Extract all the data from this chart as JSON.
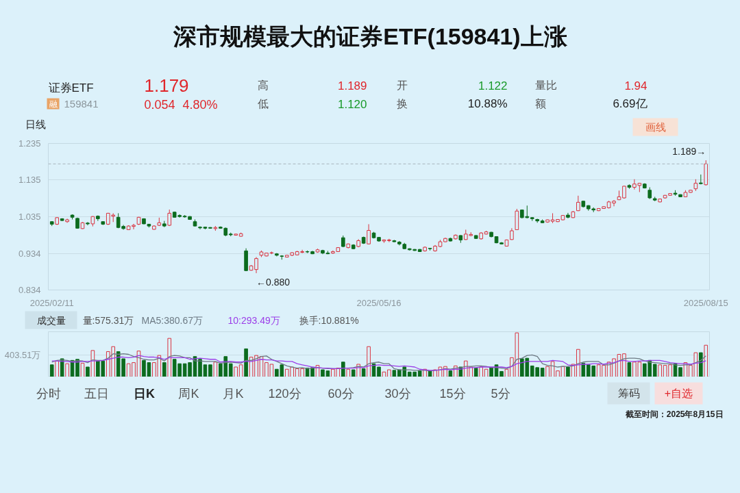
{
  "chart_data": [
    {
      "type": "candlestick",
      "title": "深市规模最大的证券ETF(159841)上涨",
      "categories": [
        "2025/02/11",
        null,
        null,
        null,
        null,
        null,
        null,
        null,
        null,
        null,
        null,
        null,
        null,
        null,
        null,
        null,
        null,
        null,
        null,
        null,
        null,
        null,
        null,
        null,
        null,
        null,
        null,
        null,
        null,
        null,
        null,
        null,
        null,
        null,
        null,
        null,
        null,
        null,
        null,
        null,
        null,
        null,
        null,
        null,
        null,
        null,
        null,
        null,
        null,
        null,
        null,
        null,
        null,
        null,
        null,
        null,
        null,
        null,
        null,
        null,
        null,
        null,
        null,
        null,
        "2025/05/16",
        null,
        null,
        null,
        null,
        null,
        null,
        null,
        null,
        null,
        null,
        null,
        null,
        null,
        null,
        null,
        null,
        null,
        null,
        null,
        null,
        null,
        null,
        null,
        null,
        null,
        null,
        null,
        null,
        null,
        null,
        null,
        null,
        null,
        null,
        null,
        null,
        null,
        null,
        null,
        null,
        null,
        null,
        null,
        null,
        null,
        null,
        null,
        null,
        null,
        null,
        null,
        null,
        null,
        null,
        null,
        null,
        null,
        null,
        null,
        null,
        null,
        null,
        null,
        "2025/08/15"
      ],
      "ohlc": [
        [
          1.021,
          1.022,
          1.009,
          1.014
        ],
        [
          1.014,
          1.033,
          1.012,
          1.032
        ],
        [
          1.029,
          1.03,
          1.023,
          1.024
        ],
        [
          1.021,
          1.029,
          1.018,
          1.026
        ],
        [
          1.039,
          1.041,
          1.027,
          1.033
        ],
        [
          1.03,
          1.032,
          1.002,
          1.003
        ],
        [
          1.002,
          1.02,
          1.001,
          1.018
        ],
        [
          1.017,
          1.02,
          1.011,
          1.015
        ],
        [
          1.015,
          1.036,
          1.008,
          1.035
        ],
        [
          1.036,
          1.038,
          1.023,
          1.029
        ],
        [
          1.021,
          1.022,
          1.012,
          1.014
        ],
        [
          1.014,
          1.045,
          1.012,
          1.044
        ],
        [
          1.036,
          1.044,
          1.02,
          1.039
        ],
        [
          1.033,
          1.044,
          1.003,
          1.005
        ],
        [
          1.008,
          1.012,
          0.999,
          1.002
        ],
        [
          0.999,
          1.011,
          0.998,
          1.009
        ],
        [
          1.008,
          1.015,
          1.0,
          1.011
        ],
        [
          1.014,
          1.034,
          1.012,
          1.033
        ],
        [
          1.029,
          1.03,
          1.014,
          1.015
        ],
        [
          1.014,
          1.015,
          1.005,
          1.009
        ],
        [
          1.0,
          1.011,
          0.999,
          1.009
        ],
        [
          1.011,
          1.032,
          1.009,
          1.018
        ],
        [
          1.015,
          1.023,
          1.006,
          1.009
        ],
        [
          1.011,
          1.054,
          1.009,
          1.044
        ],
        [
          1.047,
          1.048,
          1.032,
          1.033
        ],
        [
          1.038,
          1.041,
          1.032,
          1.035
        ],
        [
          1.036,
          1.039,
          1.032,
          1.034
        ],
        [
          1.035,
          1.036,
          1.026,
          1.027
        ],
        [
          1.021,
          1.027,
          1.008,
          1.009
        ],
        [
          1.006,
          1.008,
          1.0,
          1.004
        ],
        [
          1.006,
          1.007,
          1.0,
          1.003
        ],
        [
          1.005,
          1.006,
          1.002,
          1.003
        ],
        [
          1.002,
          1.009,
          0.996,
          1.005
        ],
        [
          1.006,
          1.008,
          1.002,
          1.003
        ],
        [
          1.003,
          1.005,
          0.981,
          0.984
        ],
        [
          0.987,
          0.991,
          0.981,
          0.985
        ],
        [
          0.984,
          0.988,
          0.983,
          0.987
        ],
        [
          0.981,
          0.991,
          0.98,
          0.988
        ],
        [
          0.941,
          0.948,
          0.886,
          0.887
        ],
        [
          0.888,
          0.902,
          0.887,
          0.9
        ],
        [
          0.89,
          0.924,
          0.88,
          0.92
        ],
        [
          0.929,
          0.942,
          0.924,
          0.938
        ],
        [
          0.927,
          0.936,
          0.926,
          0.935
        ],
        [
          0.935,
          0.939,
          0.932,
          0.936
        ],
        [
          0.933,
          0.935,
          0.926,
          0.929
        ],
        [
          0.927,
          0.929,
          0.917,
          0.926
        ],
        [
          0.924,
          0.93,
          0.923,
          0.929
        ],
        [
          0.929,
          0.937,
          0.927,
          0.936
        ],
        [
          0.93,
          0.941,
          0.929,
          0.939
        ],
        [
          0.937,
          0.944,
          0.935,
          0.939
        ],
        [
          0.939,
          0.942,
          0.935,
          0.938
        ],
        [
          0.939,
          0.941,
          0.932,
          0.933
        ],
        [
          0.938,
          0.947,
          0.936,
          0.944
        ],
        [
          0.942,
          0.944,
          0.932,
          0.935
        ],
        [
          0.935,
          0.941,
          0.932,
          0.933
        ],
        [
          0.935,
          0.942,
          0.933,
          0.939
        ],
        [
          0.939,
          0.951,
          0.938,
          0.95
        ],
        [
          0.977,
          0.983,
          0.951,
          0.953
        ],
        [
          0.95,
          0.961,
          0.948,
          0.96
        ],
        [
          0.957,
          0.959,
          0.946,
          0.947
        ],
        [
          0.953,
          0.973,
          0.951,
          0.969
        ],
        [
          0.978,
          0.98,
          0.96,
          0.962
        ],
        [
          0.96,
          1.014,
          0.959,
          0.997
        ],
        [
          0.99,
          0.993,
          0.975,
          0.977
        ],
        [
          0.978,
          0.979,
          0.966,
          0.968
        ],
        [
          0.968,
          0.972,
          0.963,
          0.971
        ],
        [
          0.969,
          0.974,
          0.965,
          0.971
        ],
        [
          0.969,
          0.971,
          0.965,
          0.966
        ],
        [
          0.965,
          0.968,
          0.956,
          0.96
        ],
        [
          0.959,
          0.963,
          0.946,
          0.947
        ],
        [
          0.947,
          0.948,
          0.942,
          0.944
        ],
        [
          0.945,
          0.946,
          0.941,
          0.942
        ],
        [
          0.945,
          0.946,
          0.938,
          0.939
        ],
        [
          0.941,
          0.953,
          0.939,
          0.951
        ],
        [
          0.948,
          0.949,
          0.942,
          0.947
        ],
        [
          0.941,
          0.957,
          0.939,
          0.954
        ],
        [
          0.953,
          0.971,
          0.951,
          0.966
        ],
        [
          0.966,
          0.977,
          0.965,
          0.975
        ],
        [
          0.975,
          0.977,
          0.967,
          0.968
        ],
        [
          0.974,
          0.986,
          0.972,
          0.984
        ],
        [
          0.983,
          0.984,
          0.963,
          0.971
        ],
        [
          0.972,
          0.999,
          0.971,
          0.987
        ],
        [
          0.983,
          0.992,
          0.981,
          0.986
        ],
        [
          0.983,
          0.984,
          0.974,
          0.975
        ],
        [
          0.974,
          0.992,
          0.972,
          0.99
        ],
        [
          0.987,
          0.996,
          0.986,
          0.993
        ],
        [
          0.992,
          0.993,
          0.978,
          0.98
        ],
        [
          0.98,
          0.981,
          0.962,
          0.963
        ],
        [
          0.963,
          0.965,
          0.959,
          0.96
        ],
        [
          0.954,
          0.972,
          0.953,
          0.971
        ],
        [
          0.972,
          1.003,
          0.971,
          0.996
        ],
        [
          0.999,
          1.056,
          0.998,
          1.05
        ],
        [
          1.053,
          1.054,
          1.03,
          1.032
        ],
        [
          1.035,
          1.065,
          1.03,
          1.032
        ],
        [
          1.032,
          1.033,
          1.023,
          1.029
        ],
        [
          1.027,
          1.029,
          1.018,
          1.023
        ],
        [
          1.023,
          1.027,
          1.017,
          1.018
        ],
        [
          1.02,
          1.027,
          1.018,
          1.026
        ],
        [
          1.022,
          1.044,
          1.017,
          1.026
        ],
        [
          1.021,
          1.028,
          1.02,
          1.027
        ],
        [
          1.026,
          1.039,
          1.025,
          1.038
        ],
        [
          1.039,
          1.045,
          1.03,
          1.033
        ],
        [
          1.032,
          1.05,
          1.031,
          1.048
        ],
        [
          1.051,
          1.092,
          1.05,
          1.074
        ],
        [
          1.077,
          1.078,
          1.06,
          1.062
        ],
        [
          1.065,
          1.066,
          1.051,
          1.056
        ],
        [
          1.056,
          1.06,
          1.047,
          1.053
        ],
        [
          1.051,
          1.058,
          1.05,
          1.057
        ],
        [
          1.057,
          1.063,
          1.056,
          1.062
        ],
        [
          1.059,
          1.078,
          1.057,
          1.075
        ],
        [
          1.072,
          1.08,
          1.063,
          1.077
        ],
        [
          1.081,
          1.106,
          1.08,
          1.089
        ],
        [
          1.086,
          1.119,
          1.084,
          1.118
        ],
        [
          1.12,
          1.123,
          1.111,
          1.115
        ],
        [
          1.115,
          1.137,
          1.109,
          1.124
        ],
        [
          1.12,
          1.127,
          1.102,
          1.126
        ],
        [
          1.124,
          1.126,
          1.112,
          1.113
        ],
        [
          1.107,
          1.115,
          1.083,
          1.086
        ],
        [
          1.084,
          1.089,
          1.077,
          1.08
        ],
        [
          1.075,
          1.084,
          1.074,
          1.083
        ],
        [
          1.086,
          1.094,
          1.084,
          1.093
        ],
        [
          1.093,
          1.099,
          1.092,
          1.098
        ],
        [
          1.099,
          1.107,
          1.092,
          1.096
        ],
        [
          1.095,
          1.096,
          1.088,
          1.089
        ],
        [
          1.089,
          1.107,
          1.088,
          1.101
        ],
        [
          1.101,
          1.108,
          1.1,
          1.107
        ],
        [
          1.111,
          1.137,
          1.105,
          1.126
        ],
        [
          1.127,
          1.15,
          1.123,
          1.125
        ],
        [
          1.122,
          1.189,
          1.12,
          1.179
        ]
      ],
      "colors": [
        "#0c6b1e",
        "#d9333f",
        "#0c6b1e",
        "#d9333f",
        "#0c6b1e",
        "#0c6b1e",
        "#d9333f",
        "#0c6b1e",
        "#d9333f",
        "#0c6b1e",
        "#0c6b1e",
        "#d9333f",
        "#d9333f",
        "#0c6b1e",
        "#0c6b1e",
        "#d9333f",
        "#d9333f",
        "#d9333f",
        "#0c6b1e",
        "#0c6b1e",
        "#d9333f",
        "#d9333f",
        "#0c6b1e",
        "#d9333f",
        "#0c6b1e",
        "#0c6b1e",
        "#0c6b1e",
        "#0c6b1e",
        "#0c6b1e",
        "#0c6b1e",
        "#0c6b1e",
        "#0c6b1e",
        "#d9333f",
        "#0c6b1e",
        "#0c6b1e",
        "#0c6b1e",
        "#d9333f",
        "#d9333f",
        "#0c6b1e",
        "#d9333f",
        "#d9333f",
        "#d9333f",
        "#d9333f",
        "#d9333f",
        "#0c6b1e",
        "#0c6b1e",
        "#d9333f",
        "#d9333f",
        "#d9333f",
        "#d9333f",
        "#0c6b1e",
        "#0c6b1e",
        "#d9333f",
        "#0c6b1e",
        "#0c6b1e",
        "#d9333f",
        "#d9333f",
        "#0c6b1e",
        "#d9333f",
        "#0c6b1e",
        "#d9333f",
        "#0c6b1e",
        "#d9333f",
        "#0c6b1e",
        "#0c6b1e",
        "#d9333f",
        "#d9333f",
        "#0c6b1e",
        "#0c6b1e",
        "#0c6b1e",
        "#0c6b1e",
        "#0c6b1e",
        "#0c6b1e",
        "#d9333f",
        "#0c6b1e",
        "#d9333f",
        "#d9333f",
        "#d9333f",
        "#0c6b1e",
        "#d9333f",
        "#0c6b1e",
        "#d9333f",
        "#d9333f",
        "#0c6b1e",
        "#d9333f",
        "#d9333f",
        "#0c6b1e",
        "#0c6b1e",
        "#0c6b1e",
        "#d9333f",
        "#d9333f",
        "#d9333f",
        "#0c6b1e",
        "#0c6b1e",
        "#0c6b1e",
        "#0c6b1e",
        "#0c6b1e",
        "#d9333f",
        "#d9333f",
        "#d9333f",
        "#d9333f",
        "#0c6b1e",
        "#d9333f",
        "#d9333f",
        "#0c6b1e",
        "#0c6b1e",
        "#0c6b1e",
        "#d9333f",
        "#d9333f",
        "#d9333f",
        "#d9333f",
        "#d9333f",
        "#d9333f",
        "#0c6b1e",
        "#d9333f",
        "#d9333f",
        "#0c6b1e",
        "#0c6b1e",
        "#0c6b1e",
        "#d9333f",
        "#d9333f",
        "#d9333f",
        "#0c6b1e",
        "#0c6b1e",
        "#d9333f",
        "#d9333f",
        "#d9333f",
        "#0c6b1e",
        "#d9333f"
      ],
      "ylim": [
        0.834,
        1.235
      ],
      "yticks": [
        0.834,
        0.934,
        1.035,
        1.135,
        1.235
      ],
      "grid": "y",
      "ref_lines": [
        {
          "axis": "y",
          "value": 1.179,
          "color": "#a9b6be",
          "line_style": "dashed"
        }
      ],
      "annotations": [
        "证券ETF",
        "融",
        "159841",
        "1.179",
        "0.054",
        "4.80%",
        "高",
        "1.189",
        "低",
        "1.120",
        "开",
        "1.122",
        "换",
        "10.88%",
        "量比",
        "1.94",
        "额",
        "6.69亿",
        "日线",
        "画线",
        {
          "text": "1.189→",
          "x": "2025/08/15",
          "y": 1.189
        },
        "←0.880"
      ]
    },
    {
      "type": "bar",
      "categories": [
        "2025/02/11",
        null,
        null,
        null,
        null,
        null,
        null,
        null,
        null,
        null,
        null,
        null,
        null,
        null,
        null,
        null,
        null,
        null,
        null,
        null,
        null,
        null,
        null,
        null,
        null,
        null,
        null,
        null,
        null,
        null,
        null,
        null,
        null,
        null,
        null,
        null,
        null,
        null,
        null,
        null,
        null,
        null,
        null,
        null,
        null,
        null,
        null,
        null,
        null,
        null,
        null,
        null,
        null,
        null,
        null,
        null,
        null,
        null,
        null,
        null,
        null,
        null,
        null,
        null,
        "2025/05/16",
        null,
        null,
        null,
        null,
        null,
        null,
        null,
        null,
        null,
        null,
        null,
        null,
        null,
        null,
        null,
        null,
        null,
        null,
        null,
        null,
        null,
        null,
        null,
        null,
        null,
        null,
        null,
        null,
        null,
        null,
        null,
        null,
        null,
        null,
        null,
        null,
        null,
        null,
        null,
        null,
        null,
        null,
        null,
        null,
        null,
        null,
        null,
        null,
        null,
        null,
        null,
        null,
        null,
        null,
        null,
        null,
        null,
        null,
        null,
        null,
        null,
        null,
        null,
        "2025/08/15"
      ],
      "series": [
        {
          "type": "bar",
          "colors": [
            "#0c6b1e",
            "#d9333f",
            "#0c6b1e",
            "#d9333f",
            "#0c6b1e",
            "#0c6b1e",
            "#d9333f",
            "#0c6b1e",
            "#d9333f",
            "#0c6b1e",
            "#0c6b1e",
            "#d9333f",
            "#d9333f",
            "#0c6b1e",
            "#0c6b1e",
            "#d9333f",
            "#d9333f",
            "#d9333f",
            "#0c6b1e",
            "#0c6b1e",
            "#d9333f",
            "#d9333f",
            "#0c6b1e",
            "#d9333f",
            "#0c6b1e",
            "#0c6b1e",
            "#0c6b1e",
            "#0c6b1e",
            "#0c6b1e",
            "#0c6b1e",
            "#0c6b1e",
            "#0c6b1e",
            "#d9333f",
            "#0c6b1e",
            "#0c6b1e",
            "#0c6b1e",
            "#d9333f",
            "#d9333f",
            "#0c6b1e",
            "#d9333f",
            "#d9333f",
            "#d9333f",
            "#d9333f",
            "#d9333f",
            "#0c6b1e",
            "#0c6b1e",
            "#d9333f",
            "#d9333f",
            "#d9333f",
            "#d9333f",
            "#0c6b1e",
            "#0c6b1e",
            "#d9333f",
            "#0c6b1e",
            "#0c6b1e",
            "#d9333f",
            "#d9333f",
            "#0c6b1e",
            "#d9333f",
            "#0c6b1e",
            "#d9333f",
            "#0c6b1e",
            "#d9333f",
            "#0c6b1e",
            "#0c6b1e",
            "#d9333f",
            "#d9333f",
            "#0c6b1e",
            "#0c6b1e",
            "#0c6b1e",
            "#0c6b1e",
            "#0c6b1e",
            "#0c6b1e",
            "#d9333f",
            "#0c6b1e",
            "#d9333f",
            "#d9333f",
            "#d9333f",
            "#0c6b1e",
            "#d9333f",
            "#0c6b1e",
            "#d9333f",
            "#d9333f",
            "#0c6b1e",
            "#d9333f",
            "#d9333f",
            "#0c6b1e",
            "#0c6b1e",
            "#0c6b1e",
            "#d9333f",
            "#d9333f",
            "#d9333f",
            "#0c6b1e",
            "#0c6b1e",
            "#0c6b1e",
            "#0c6b1e",
            "#0c6b1e",
            "#d9333f",
            "#d9333f",
            "#d9333f",
            "#d9333f",
            "#0c6b1e",
            "#d9333f",
            "#d9333f",
            "#0c6b1e",
            "#0c6b1e",
            "#0c6b1e",
            "#d9333f",
            "#d9333f",
            "#d9333f",
            "#d9333f",
            "#d9333f",
            "#d9333f",
            "#0c6b1e",
            "#d9333f",
            "#d9333f",
            "#0c6b1e",
            "#0c6b1e",
            "#0c6b1e",
            "#d9333f",
            "#d9333f",
            "#d9333f",
            "#0c6b1e",
            "#0c6b1e",
            "#d9333f",
            "#d9333f",
            "#d9333f",
            "#0c6b1e",
            "#d9333f"
          ],
          "values": [
            220,
            290,
            330,
            240,
            300,
            320,
            250,
            180,
            480,
            290,
            290,
            460,
            550,
            460,
            330,
            240,
            260,
            470,
            300,
            260,
            260,
            390,
            260,
            700,
            320,
            240,
            240,
            260,
            370,
            320,
            220,
            220,
            270,
            240,
            370,
            240,
            180,
            220,
            510,
            360,
            390,
            370,
            260,
            230,
            140,
            220,
            140,
            180,
            150,
            150,
            160,
            170,
            210,
            130,
            110,
            140,
            160,
            270,
            140,
            130,
            230,
            150,
            550,
            240,
            180,
            90,
            130,
            120,
            130,
            180,
            90,
            90,
            110,
            140,
            110,
            130,
            180,
            190,
            110,
            200,
            180,
            290,
            180,
            160,
            180,
            140,
            170,
            220,
            100,
            140,
            350,
            800,
            330,
            340,
            200,
            170,
            160,
            190,
            280,
            110,
            190,
            180,
            230,
            500,
            250,
            220,
            200,
            220,
            210,
            270,
            330,
            410,
            420,
            260,
            270,
            270,
            240,
            300,
            230,
            220,
            210,
            220,
            240,
            170,
            260,
            210,
            440,
            440,
            575.31
          ]
        },
        {
          "type": "line",
          "name": "MA5:380.67万",
          "color": "#6d7a84",
          "values": [
            270,
            300,
            310,
            300,
            280,
            300,
            290,
            260,
            310,
            300,
            300,
            340,
            420,
            410,
            420,
            410,
            370,
            350,
            320,
            310,
            310,
            340,
            290,
            370,
            390,
            380,
            350,
            350,
            290,
            290,
            280,
            280,
            280,
            250,
            260,
            270,
            260,
            250,
            300,
            300,
            330,
            370,
            380,
            320,
            280,
            240,
            200,
            180,
            160,
            170,
            150,
            160,
            170,
            160,
            150,
            150,
            150,
            160,
            160,
            170,
            190,
            180,
            240,
            260,
            270,
            240,
            240,
            150,
            130,
            130,
            130,
            120,
            120,
            120,
            110,
            120,
            130,
            150,
            140,
            160,
            170,
            190,
            190,
            200,
            200,
            190,
            170,
            170,
            160,
            150,
            190,
            320,
            340,
            390,
            400,
            370,
            240,
            210,
            200,
            180,
            190,
            190,
            200,
            240,
            270,
            280,
            280,
            280,
            220,
            220,
            250,
            290,
            330,
            340,
            340,
            330,
            290,
            270,
            260,
            250,
            240,
            240,
            220,
            210,
            220,
            220,
            260,
            300,
            380.67
          ]
        },
        {
          "type": "line",
          "name": "10:293.49万",
          "color": "#9b3ee8",
          "values": [
            290,
            290,
            280,
            280,
            270,
            270,
            280,
            280,
            290,
            290,
            300,
            320,
            340,
            360,
            360,
            350,
            360,
            390,
            370,
            360,
            360,
            350,
            320,
            350,
            350,
            350,
            350,
            320,
            330,
            340,
            330,
            320,
            320,
            270,
            280,
            280,
            270,
            270,
            280,
            280,
            300,
            320,
            310,
            310,
            290,
            290,
            280,
            280,
            240,
            220,
            200,
            180,
            170,
            160,
            160,
            150,
            150,
            160,
            160,
            160,
            170,
            170,
            200,
            210,
            220,
            210,
            210,
            200,
            190,
            200,
            190,
            180,
            140,
            130,
            120,
            120,
            130,
            140,
            130,
            140,
            140,
            160,
            170,
            170,
            180,
            180,
            180,
            180,
            180,
            170,
            190,
            240,
            260,
            280,
            280,
            280,
            280,
            280,
            300,
            290,
            280,
            220,
            210,
            220,
            230,
            230,
            240,
            240,
            230,
            250,
            260,
            290,
            300,
            280,
            280,
            290,
            290,
            300,
            300,
            300,
            280,
            260,
            250,
            240,
            240,
            230,
            250,
            260,
            293.49
          ]
        }
      ],
      "ylim": [
        0,
        820
      ],
      "yticks": [
        {
          "value": 0,
          "label": null
        },
        {
          "value": 403.51,
          "label": "403.51万"
        }
      ],
      "grid": "y",
      "tick_labels": "y",
      "legend": "top left",
      "annotations": [
        "成交量",
        "量:575.31万",
        "换手:10.881%",
        "分时",
        "五日",
        "日K",
        "周K",
        "月K",
        "120分",
        "60分",
        "30分",
        "15分",
        "5分",
        "筹码",
        "+自选",
        "截至时间：2025年8月15日"
      ]
    }
  ]
}
